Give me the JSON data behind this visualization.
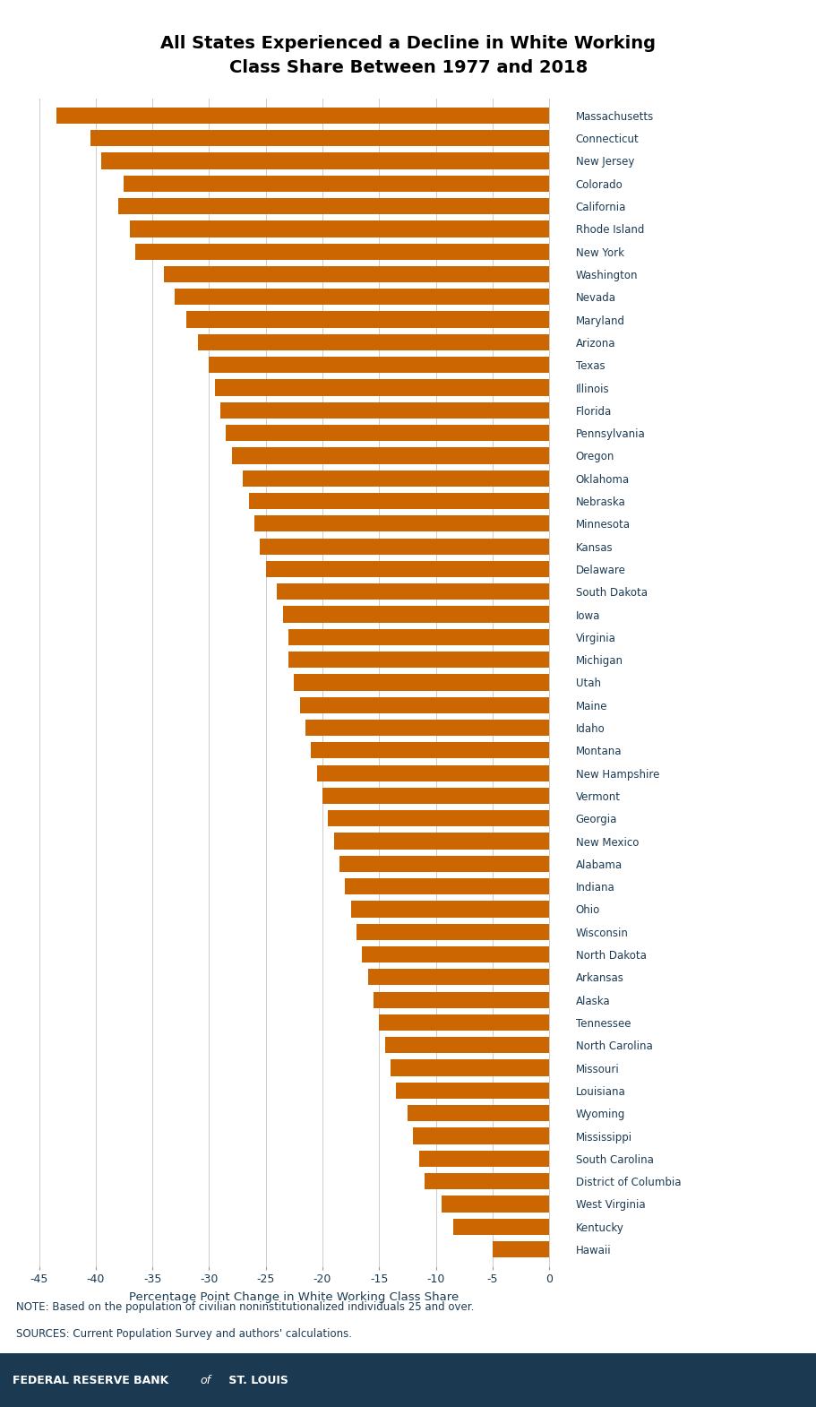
{
  "title": "All States Experienced a Decline in White Working\nClass Share Between 1977 and 2018",
  "xlabel": "Percentage Point Change in White Working Class Share",
  "note1": "NOTE: Based on the population of civilian noninstitutionalized individuals 25 and over.",
  "note2": "SOURCES: Current Population Survey and authors' calculations.",
  "footer": "FEDERAL RESERVE BANK of ST. LOUIS",
  "bar_color": "#CC6600",
  "footer_bg": "#1B3A52",
  "footer_text_color": "#FFFFFF",
  "text_color": "#1B3A52",
  "xlim": [
    -47,
    2
  ],
  "xticks": [
    -45,
    -40,
    -35,
    -30,
    -25,
    -20,
    -15,
    -10,
    -5,
    0
  ],
  "states": [
    "Massachusetts",
    "Connecticut",
    "New Jersey",
    "Colorado",
    "California",
    "Rhode Island",
    "New York",
    "Washington",
    "Nevada",
    "Maryland",
    "Arizona",
    "Texas",
    "Illinois",
    "Florida",
    "Pennsylvania",
    "Oregon",
    "Oklahoma",
    "Nebraska",
    "Minnesota",
    "Kansas",
    "Delaware",
    "South Dakota",
    "Iowa",
    "Virginia",
    "Michigan",
    "Utah",
    "Maine",
    "Idaho",
    "Montana",
    "New Hampshire",
    "Vermont",
    "Georgia",
    "New Mexico",
    "Alabama",
    "Indiana",
    "Ohio",
    "Wisconsin",
    "North Dakota",
    "Arkansas",
    "Alaska",
    "Tennessee",
    "North Carolina",
    "Missouri",
    "Louisiana",
    "Wyoming",
    "Mississippi",
    "South Carolina",
    "District of Columbia",
    "West Virginia",
    "Kentucky",
    "Hawaii"
  ],
  "values": [
    -43.5,
    -40.5,
    -39.5,
    -37.5,
    -38.0,
    -37.0,
    -36.5,
    -34.0,
    -33.0,
    -32.0,
    -31.0,
    -30.0,
    -29.5,
    -29.0,
    -28.5,
    -28.0,
    -27.0,
    -26.5,
    -26.0,
    -25.5,
    -25.0,
    -24.0,
    -23.5,
    -23.0,
    -23.0,
    -22.5,
    -22.0,
    -21.5,
    -21.0,
    -20.5,
    -20.0,
    -19.5,
    -19.0,
    -18.5,
    -18.0,
    -17.5,
    -17.0,
    -16.5,
    -16.0,
    -15.5,
    -15.0,
    -14.5,
    -14.0,
    -13.5,
    -12.5,
    -12.0,
    -11.5,
    -11.0,
    -9.5,
    -8.5,
    -5.0
  ]
}
